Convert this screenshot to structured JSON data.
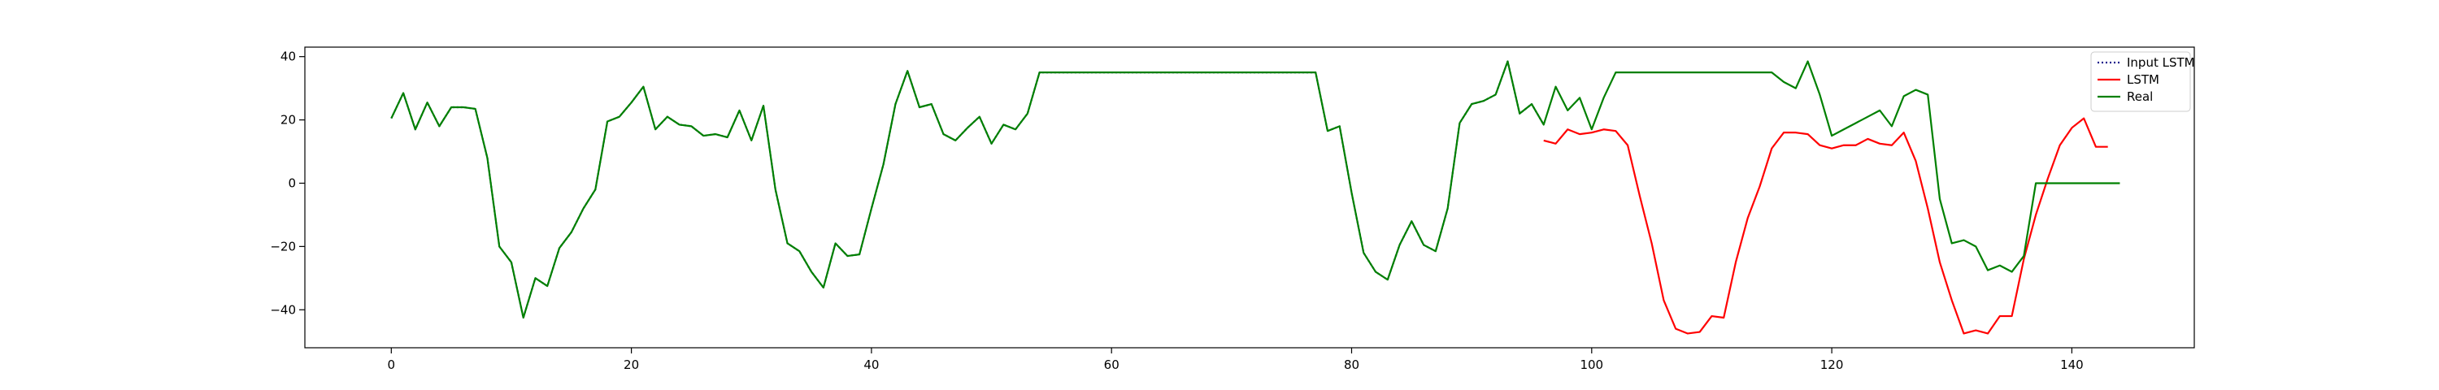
{
  "chart_data": {
    "type": "line",
    "title": "",
    "xlabel": "",
    "ylabel": "",
    "xlim": [
      -7.2,
      150.2
    ],
    "ylim": [
      -52,
      43
    ],
    "xticks": [
      0,
      20,
      40,
      60,
      80,
      100,
      120,
      140
    ],
    "yticks": [
      -40,
      -20,
      0,
      20,
      40
    ],
    "grid": false,
    "legend_position": "top-right",
    "series": [
      {
        "name": "Input LSTM",
        "color": "#1a1a8c",
        "style": "dotted",
        "x_start": 0,
        "values": [
          20.5,
          28.5,
          17,
          25.5,
          18,
          24,
          24,
          23.5,
          8,
          -20,
          -25,
          -42.5,
          -30,
          -32.5,
          -20.5,
          -15.5,
          -8,
          -2,
          19.5,
          21,
          25.5,
          30.5,
          17,
          21,
          18.5,
          18,
          15,
          15.5,
          14.5,
          23,
          13.5,
          24.5,
          -2,
          -19,
          -21.5,
          -28,
          -33,
          -19,
          -23,
          -22.5,
          -8,
          6,
          25,
          35.5,
          24,
          25,
          15.5,
          13.5,
          17.5,
          21,
          12.5,
          18.5,
          17,
          22,
          35,
          35,
          35,
          35,
          35,
          35,
          35,
          35,
          35,
          35,
          35,
          35,
          35,
          35,
          35,
          35,
          35,
          35,
          35,
          35,
          35,
          35,
          35,
          35,
          16.5,
          18,
          -3,
          -22,
          -28,
          -30.5,
          -19.5,
          -12,
          -19.5,
          -21.5,
          -8,
          19,
          25,
          26,
          28,
          38.5,
          22,
          25,
          18.5
        ]
      },
      {
        "name": "LSTM",
        "color": "#ff0000",
        "style": "solid",
        "x_start": 96,
        "values": [
          13.5,
          12.5,
          17,
          15.5,
          16,
          17,
          16.5,
          12,
          -4,
          -19,
          -37,
          -46,
          -47.5,
          -47,
          -42,
          -42.5,
          -25,
          -11,
          -1,
          11,
          16,
          16,
          15.5,
          12,
          11,
          12,
          12,
          14,
          12.5,
          12,
          16,
          7,
          -8,
          -25,
          -37,
          -47.5,
          -46.5,
          -47.5,
          -42,
          -42,
          -24,
          -10,
          1.5,
          12,
          17.5,
          20.5,
          11.5,
          11.5
        ]
      },
      {
        "name": "Real",
        "color": "#008000",
        "style": "solid",
        "x_start": 0,
        "values": [
          20.5,
          28.5,
          17,
          25.5,
          18,
          24,
          24,
          23.5,
          8,
          -20,
          -25,
          -42.5,
          -30,
          -32.5,
          -20.5,
          -15.5,
          -8,
          -2,
          19.5,
          21,
          25.5,
          30.5,
          17,
          21,
          18.5,
          18,
          15,
          15.5,
          14.5,
          23,
          13.5,
          24.5,
          -2,
          -19,
          -21.5,
          -28,
          -33,
          -19,
          -23,
          -22.5,
          -8,
          6,
          25,
          35.5,
          24,
          25,
          15.5,
          13.5,
          17.5,
          21,
          12.5,
          18.5,
          17,
          22,
          35,
          35,
          35,
          35,
          35,
          35,
          35,
          35,
          35,
          35,
          35,
          35,
          35,
          35,
          35,
          35,
          35,
          35,
          35,
          35,
          35,
          35,
          35,
          35,
          16.5,
          18,
          -3,
          -22,
          -28,
          -30.5,
          -19.5,
          -12,
          -19.5,
          -21.5,
          -8,
          19,
          25,
          26,
          28,
          38.5,
          22,
          25,
          18.5,
          30.5,
          23,
          27,
          17,
          27,
          35,
          35,
          35,
          35,
          35,
          35,
          35,
          35,
          35,
          35,
          35,
          35,
          35,
          35,
          32,
          30,
          38.5,
          28,
          15,
          17,
          19,
          21,
          23,
          18,
          27.5,
          29.5,
          28,
          -5,
          -19,
          -18,
          -20,
          -27.5,
          -26,
          -28,
          -23,
          0,
          0,
          0,
          0,
          0,
          0,
          0,
          0
        ]
      }
    ]
  }
}
